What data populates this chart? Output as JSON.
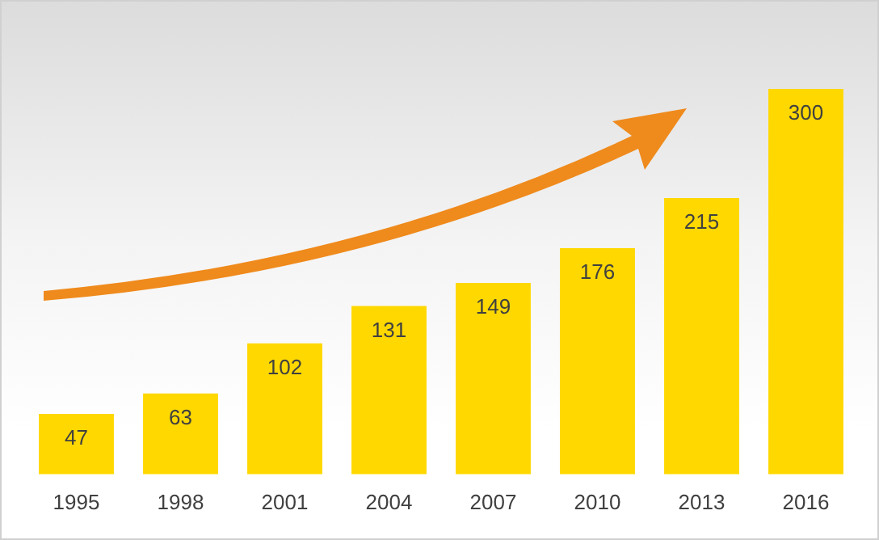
{
  "chart_data": {
    "type": "bar",
    "categories": [
      "1995",
      "1998",
      "2001",
      "2004",
      "2007",
      "2010",
      "2013",
      "2016"
    ],
    "values": [
      47,
      63,
      102,
      131,
      149,
      176,
      215,
      300
    ],
    "color": "#ffd800",
    "data_labels": true,
    "grid": false
  }
}
